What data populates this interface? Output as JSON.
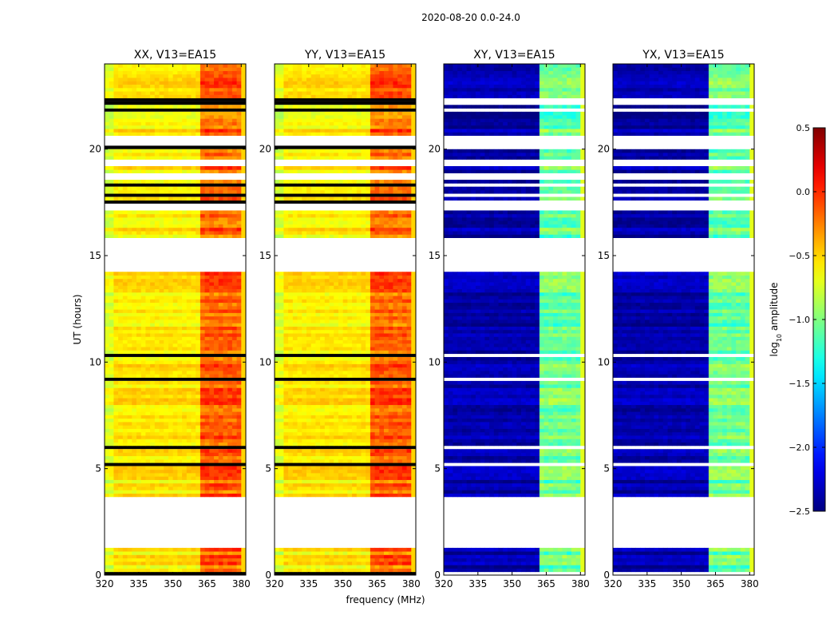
{
  "suptitle": "2020-08-20 0.0-24.0",
  "chart_data": {
    "type": "heatmap",
    "xlabel": "frequency (MHz)",
    "ylabel": "UT (hours)",
    "xlim": [
      320,
      382
    ],
    "ylim": [
      0,
      24
    ],
    "xticks": [
      320,
      335,
      350,
      365,
      380
    ],
    "yticks": [
      0,
      5,
      10,
      15,
      20
    ],
    "panels": [
      {
        "title": "XX, V13=EA15",
        "product": "parallel"
      },
      {
        "title": "YY, V13=EA15",
        "product": "parallel"
      },
      {
        "title": "XY, V13=EA15",
        "product": "cross"
      },
      {
        "title": "YX, V13=EA15",
        "product": "cross"
      }
    ],
    "colorbar": {
      "label": "log10 amplitude",
      "label_main": "log",
      "label_sub": "10",
      "label_rest": " amplitude",
      "min": -2.5,
      "max": 0.5,
      "ticks": [
        0.5,
        0.0,
        -0.5,
        -1.0,
        -1.5,
        -2.0,
        -2.5
      ],
      "tick_labels": [
        "0.5",
        "0.0",
        "−0.5",
        "−1.0",
        "−1.5",
        "−2.0",
        "−2.5"
      ],
      "colormap": "jet"
    },
    "flagged_hours": [
      [
        1.25,
        3.7
      ],
      [
        14.2,
        15.8
      ],
      [
        20.2,
        20.6
      ],
      [
        19.2,
        19.5
      ],
      [
        18.55,
        18.8
      ],
      [
        17.15,
        17.5
      ]
    ],
    "rfi_band_mhz": [
      363,
      381
    ],
    "rfi_channels_mhz": [
      [
        363,
        367
      ],
      [
        368,
        372
      ],
      [
        373,
        376
      ],
      [
        377,
        380
      ]
    ],
    "approx_log_amplitude": {
      "parallel_baseline": -0.6,
      "parallel_rfi": -0.2,
      "cross_baseline": -2.4,
      "cross_rfi": -1.1
    }
  }
}
